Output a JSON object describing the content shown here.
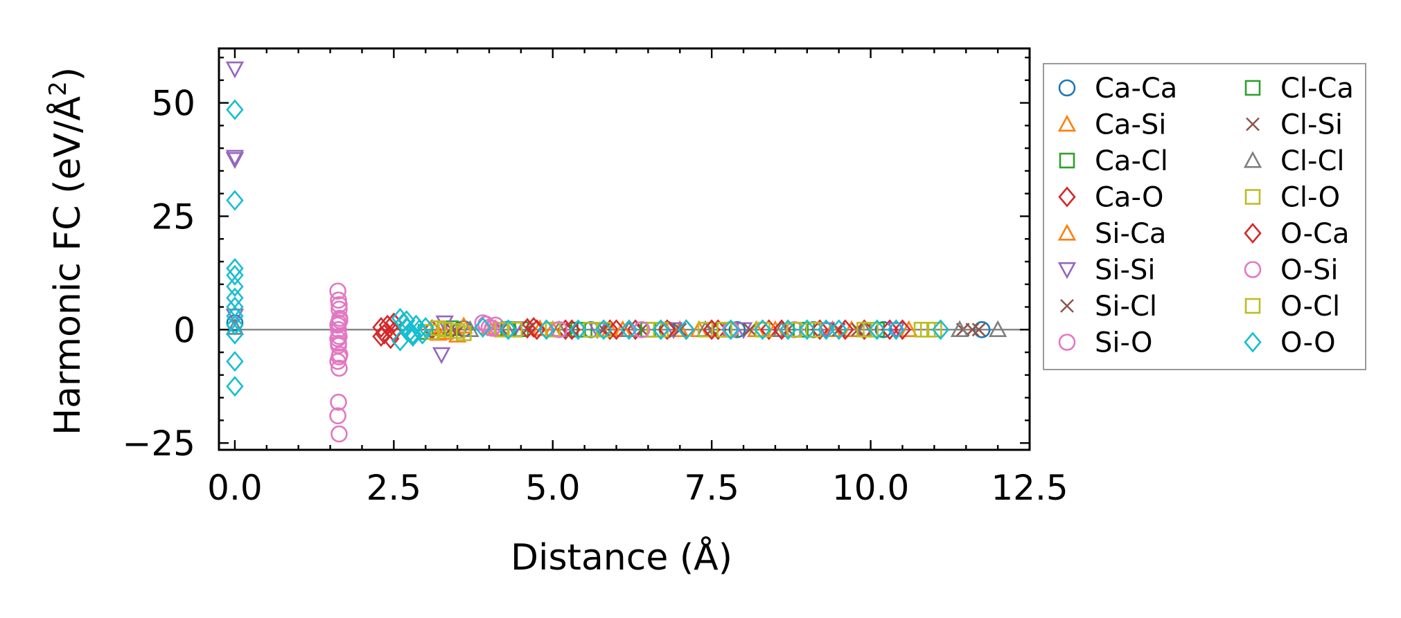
{
  "chart_data": {
    "type": "scatter",
    "xlabel": "Distance (Å)",
    "ylabel_main": "Harmonic FC (eV/Å",
    "ylabel_sup": "2",
    "ylabel_close": ")",
    "xlim": [
      -0.25,
      12.5
    ],
    "ylim": [
      -26.5,
      62
    ],
    "xticks": [
      0.0,
      2.5,
      5.0,
      7.5,
      10.0,
      12.5
    ],
    "xtick_labels": [
      "0.0",
      "2.5",
      "5.0",
      "7.5",
      "10.0",
      "12.5"
    ],
    "yticks": [
      -25,
      0,
      25,
      50
    ],
    "ytick_labels": [
      "−25",
      "0",
      "25",
      "50"
    ],
    "reference_line_y": 0,
    "legend_position": "right, outside plot",
    "series": [
      {
        "name": "Ca-Ca",
        "marker": "circle",
        "color": "#1f77b4",
        "x": [
          0.0,
          3.6,
          4.3,
          5.6,
          6.8,
          7.9,
          9.1,
          10.2,
          11.75
        ],
        "y": [
          1.5,
          0.2,
          0.1,
          0.0,
          0.0,
          0.0,
          0.0,
          0.0,
          0.0
        ]
      },
      {
        "name": "Ca-Si",
        "marker": "triangle-up",
        "color": "#ff7f0e",
        "x": [
          3.2,
          3.5,
          4.0,
          4.8,
          5.9,
          7.0,
          8.2,
          9.4,
          10.6
        ],
        "y": [
          -0.8,
          -1.2,
          0.5,
          0.2,
          0.0,
          0.0,
          0.0,
          0.0,
          0.0
        ]
      },
      {
        "name": "Ca-Cl",
        "marker": "square",
        "color": "#2ca02c",
        "x": [
          3.0,
          3.4,
          4.5,
          5.5,
          6.6,
          7.8,
          9.0,
          10.1
        ],
        "y": [
          -0.5,
          0.3,
          0.1,
          0.0,
          0.0,
          0.0,
          0.0,
          0.0
        ]
      },
      {
        "name": "Ca-O",
        "marker": "diamond",
        "color": "#d62728",
        "x": [
          2.3,
          2.35,
          2.45,
          2.5,
          3.1,
          4.6,
          4.75,
          5.2,
          5.9,
          6.3,
          6.7,
          7.1,
          7.6,
          8.4,
          9.2,
          9.9,
          10.3
        ],
        "y": [
          0.5,
          -1.0,
          -2.0,
          1.5,
          0.0,
          0.3,
          0.0,
          0.0,
          0.0,
          0.0,
          0.0,
          0.0,
          0.0,
          0.0,
          0.0,
          0.0,
          0.0
        ]
      },
      {
        "name": "Si-Ca",
        "marker": "triangle-up",
        "color": "#ff7f0e",
        "x": [
          3.3,
          3.6,
          4.1,
          5.0,
          6.1,
          7.3,
          8.5,
          9.7
        ],
        "y": [
          -0.6,
          0.8,
          0.2,
          0.0,
          0.0,
          0.0,
          0.0,
          0.0
        ]
      },
      {
        "name": "Si-Si",
        "marker": "triangle-down",
        "color": "#9467bd",
        "x": [
          0.0,
          0.0,
          0.0,
          0.0,
          3.25,
          3.3,
          4.4,
          5.7,
          6.9,
          8.0,
          9.3,
          10.4
        ],
        "y": [
          57.5,
          38.0,
          37.5,
          3.0,
          -5.5,
          1.5,
          0.2,
          0.0,
          0.0,
          0.0,
          0.0,
          0.0
        ]
      },
      {
        "name": "Si-Cl",
        "marker": "x",
        "color": "#8c564b",
        "x": [
          3.4,
          4.2,
          5.3,
          6.4,
          7.5,
          8.7,
          9.8,
          11.6
        ],
        "y": [
          0.2,
          0.1,
          0.0,
          0.0,
          0.0,
          0.0,
          0.0,
          0.0
        ]
      },
      {
        "name": "Si-O",
        "marker": "circle",
        "color": "#e377c2",
        "x": [
          1.62,
          1.63,
          1.64,
          1.65,
          1.62,
          1.64,
          1.63,
          1.65,
          1.62,
          1.64,
          1.63,
          1.65,
          1.64,
          1.63,
          1.62,
          1.64,
          1.63,
          3.9,
          4.0,
          4.1
        ],
        "y": [
          8.5,
          6.5,
          4.5,
          2.5,
          1.0,
          -1.5,
          -3.5,
          -5.5,
          -7.0,
          -8.5,
          -3.0,
          2.0,
          5.5,
          -16.0,
          -19.0,
          -23.0,
          0.0,
          1.5,
          0.5,
          1.0
        ]
      },
      {
        "name": "Cl-Ca",
        "marker": "square",
        "color": "#2ca02c",
        "x": [
          3.2,
          4.3,
          5.4,
          6.5,
          7.7,
          8.9
        ],
        "y": [
          0.3,
          0.1,
          0.0,
          0.0,
          0.0,
          0.0
        ]
      },
      {
        "name": "Cl-Si",
        "marker": "x",
        "color": "#8c564b",
        "x": [
          3.5,
          4.6,
          5.8,
          7.0,
          8.1,
          9.5,
          11.45,
          11.7
        ],
        "y": [
          -0.5,
          0.1,
          0.0,
          0.0,
          0.0,
          0.0,
          0.0,
          0.0
        ]
      },
      {
        "name": "Cl-Cl",
        "marker": "triangle-up",
        "color": "#7f7f7f",
        "x": [
          0.0,
          3.7,
          5.1,
          6.2,
          7.4,
          8.6,
          9.9,
          11.4,
          12.0
        ],
        "y": [
          0.5,
          0.0,
          0.0,
          0.0,
          0.0,
          0.0,
          0.0,
          0.0,
          0.0
        ]
      },
      {
        "name": "Cl-O",
        "marker": "square",
        "color": "#bcbd22",
        "x": [
          3.1,
          3.3,
          3.6,
          4.2,
          5.0,
          5.8,
          6.6,
          7.4,
          8.3,
          9.1,
          9.9,
          10.8,
          11.0
        ],
        "y": [
          -0.5,
          0.0,
          -0.8,
          0.0,
          0.0,
          0.0,
          0.0,
          0.0,
          0.0,
          0.0,
          0.0,
          0.0,
          0.0
        ]
      },
      {
        "name": "O-Ca",
        "marker": "diamond",
        "color": "#d62728",
        "x": [
          2.3,
          2.4,
          2.5,
          4.7,
          5.3,
          6.0,
          6.8,
          7.5,
          8.6,
          9.6,
          10.5
        ],
        "y": [
          -1.5,
          1.0,
          -0.5,
          0.5,
          0.0,
          0.0,
          0.0,
          0.0,
          0.0,
          0.0,
          0.0
        ]
      },
      {
        "name": "O-Si",
        "marker": "circle",
        "color": "#e377c2",
        "x": [
          1.63,
          1.64,
          1.62,
          3.95,
          4.05,
          5.1,
          6.4,
          7.8,
          8.8
        ],
        "y": [
          1.5,
          -6.0,
          -2.0,
          1.2,
          0.3,
          0.0,
          0.0,
          0.0,
          0.0
        ]
      },
      {
        "name": "O-Cl",
        "marker": "square",
        "color": "#bcbd22",
        "x": [
          3.2,
          3.5,
          4.4,
          5.6,
          6.7,
          7.7,
          8.8,
          10.0,
          10.9
        ],
        "y": [
          0.3,
          -0.3,
          0.0,
          0.0,
          0.0,
          0.0,
          0.0,
          0.0,
          0.0
        ]
      },
      {
        "name": "O-O",
        "marker": "diamond",
        "color": "#17becf",
        "x": [
          0.0,
          0.0,
          0.0,
          0.0,
          0.0,
          0.0,
          0.0,
          0.0,
          0.0,
          0.0,
          0.0,
          0.0,
          2.6,
          2.65,
          2.7,
          2.75,
          2.8,
          2.85,
          2.9,
          2.95,
          3.0,
          2.6,
          2.7,
          2.8,
          3.9,
          4.3,
          4.9,
          5.4,
          5.8,
          6.2,
          6.7,
          7.1,
          7.8,
          8.3,
          8.7,
          9.0,
          9.3,
          9.5,
          10.1,
          10.4,
          11.1
        ],
        "y": [
          48.5,
          28.5,
          13.5,
          12.0,
          9.5,
          7.0,
          5.0,
          3.0,
          1.0,
          -1.0,
          -7.0,
          -12.5,
          2.5,
          1.5,
          0.5,
          -0.5,
          -1.5,
          1.0,
          0.0,
          -1.0,
          0.5,
          -2.5,
          2.0,
          -1.0,
          0.5,
          0.0,
          0.0,
          0.0,
          0.0,
          0.0,
          0.0,
          0.0,
          0.0,
          0.0,
          0.0,
          0.0,
          0.0,
          0.0,
          0.0,
          0.0,
          0.0
        ]
      }
    ]
  }
}
